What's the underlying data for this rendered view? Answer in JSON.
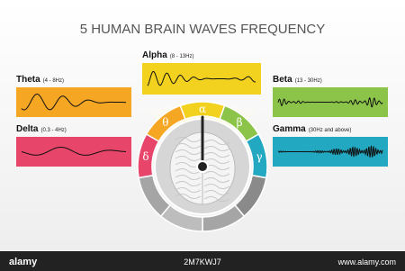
{
  "title": "5 HUMAN BRAIN WAVES FREQUENCY",
  "waves": [
    {
      "name": "Delta",
      "range": "(0.3 - 4Hz)",
      "symbol": "δ"
    },
    {
      "name": "Theta",
      "range": "(4 - 8Hz)",
      "symbol": "θ"
    },
    {
      "name": "Alpha",
      "range": "(8 - 13Hz)",
      "symbol": "α"
    },
    {
      "name": "Beta",
      "range": "(13 - 30Hz)",
      "symbol": "β"
    },
    {
      "name": "Gamma",
      "range": "(30Hz and above)",
      "symbol": "γ"
    }
  ],
  "footer": {
    "brand": "alamy",
    "image_id": "2M7KWJ7",
    "url": "www.alamy.com"
  }
}
